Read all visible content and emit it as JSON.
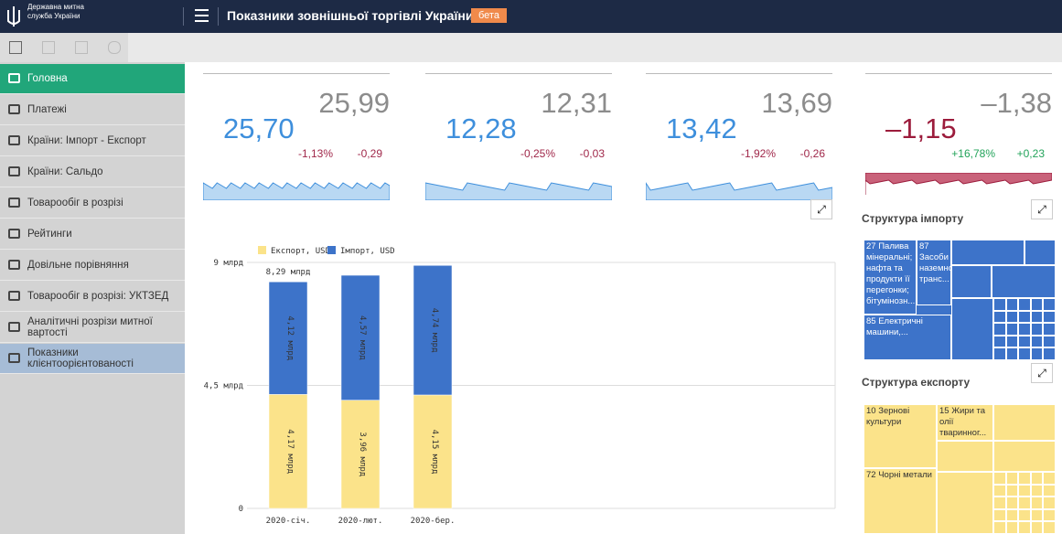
{
  "header": {
    "org": "Державна митна служба України",
    "title": "Показники зовнішньої торгівлі України",
    "badge": "бета"
  },
  "nav": [
    "Головна",
    "Платежі",
    "Країни: Імпорт - Експорт",
    "Країни: Сальдо",
    "Товарообіг в розрізі",
    "Рейтинги",
    "Довільне порівняння",
    "Товарообіг в розрізі: УКТЗЕД",
    "Аналітичні розрізи митної вартості",
    "Показники клієнтоорієнтованості"
  ],
  "kpis": [
    {
      "current": "25,70",
      "previous": "25,99",
      "change_pct": "-1,13%",
      "change": "-0,29"
    },
    {
      "current": "12,28",
      "previous": "12,31",
      "change_pct": "-0,25%",
      "change": "-0,03"
    },
    {
      "current": "13,42",
      "previous": "13,69",
      "change_pct": "-1,92%",
      "change": "-0,26"
    },
    {
      "current": "–1,15",
      "previous": "–1,38",
      "change_pct": "+16,78%",
      "change": "+0,23"
    }
  ],
  "bar_chart": {
    "type": "bar",
    "stacked": true,
    "categories": [
      "2020-січ.",
      "2020-лют.",
      "2020-бер."
    ],
    "series": [
      {
        "name": "Експорт, USD",
        "color": "#fbe38a",
        "values": [
          4.17,
          3.96,
          4.15
        ],
        "value_labels": [
          "4,17 млрд",
          "3,96 млрд",
          "4,15 млрд"
        ]
      },
      {
        "name": "Імпорт, USD",
        "color": "#3d73c9",
        "values": [
          4.12,
          4.57,
          4.74
        ],
        "value_labels": [
          "4,12 млрд",
          "4,57 млрд",
          "4,74 млрд"
        ]
      }
    ],
    "annotations": [
      "8,29 млрд"
    ],
    "ylim": [
      0,
      9
    ],
    "yticks": [
      0,
      {
        "value": 4.5,
        "label": "4,5 млрд"
      },
      {
        "value": 9,
        "label": "9 млрд"
      }
    ],
    "grid": true
  },
  "import_structure": {
    "title": "Структура імпорту",
    "labels": [
      "27 Палива мінеральні; нафта та продукти її перегонки; бітумінозн...",
      "87 Засоби наземного транс...",
      "85 Електричні машини,..."
    ]
  },
  "export_structure": {
    "title": "Структура експорту",
    "labels": [
      "10 Зернові культури",
      "15 Жири та олії тваринног...",
      "72 Чорні метали"
    ]
  }
}
